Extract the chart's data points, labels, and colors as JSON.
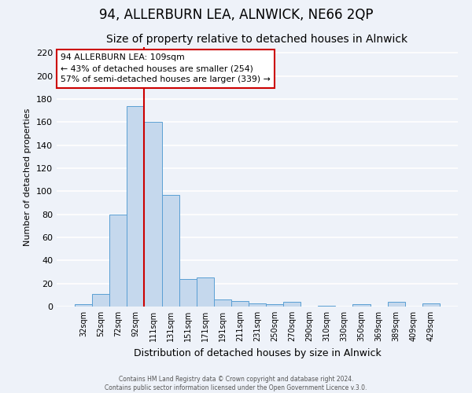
{
  "title": "94, ALLERBURN LEA, ALNWICK, NE66 2QP",
  "subtitle": "Size of property relative to detached houses in Alnwick",
  "xlabel": "Distribution of detached houses by size in Alnwick",
  "ylabel": "Number of detached properties",
  "bar_labels": [
    "32sqm",
    "52sqm",
    "72sqm",
    "92sqm",
    "111sqm",
    "131sqm",
    "151sqm",
    "171sqm",
    "191sqm",
    "211sqm",
    "231sqm",
    "250sqm",
    "270sqm",
    "290sqm",
    "310sqm",
    "330sqm",
    "350sqm",
    "369sqm",
    "389sqm",
    "409sqm",
    "429sqm"
  ],
  "bar_values": [
    2,
    11,
    80,
    174,
    160,
    97,
    24,
    25,
    6,
    5,
    3,
    2,
    4,
    0,
    1,
    0,
    2,
    0,
    4,
    0,
    3
  ],
  "bar_color": "#c5d8ed",
  "bar_edge_color": "#5a9fd4",
  "ylim": [
    0,
    225
  ],
  "yticks": [
    0,
    20,
    40,
    60,
    80,
    100,
    120,
    140,
    160,
    180,
    200,
    220
  ],
  "vline_color": "#cc0000",
  "annotation_title": "94 ALLERBURN LEA: 109sqm",
  "annotation_line1": "← 43% of detached houses are smaller (254)",
  "annotation_line2": "57% of semi-detached houses are larger (339) →",
  "footer1": "Contains HM Land Registry data © Crown copyright and database right 2024.",
  "footer2": "Contains public sector information licensed under the Open Government Licence v.3.0.",
  "background_color": "#eef2f9",
  "plot_bg_color": "#eef2f9",
  "grid_color": "#ffffff",
  "title_fontsize": 12,
  "subtitle_fontsize": 10,
  "vline_bar_index": 4
}
